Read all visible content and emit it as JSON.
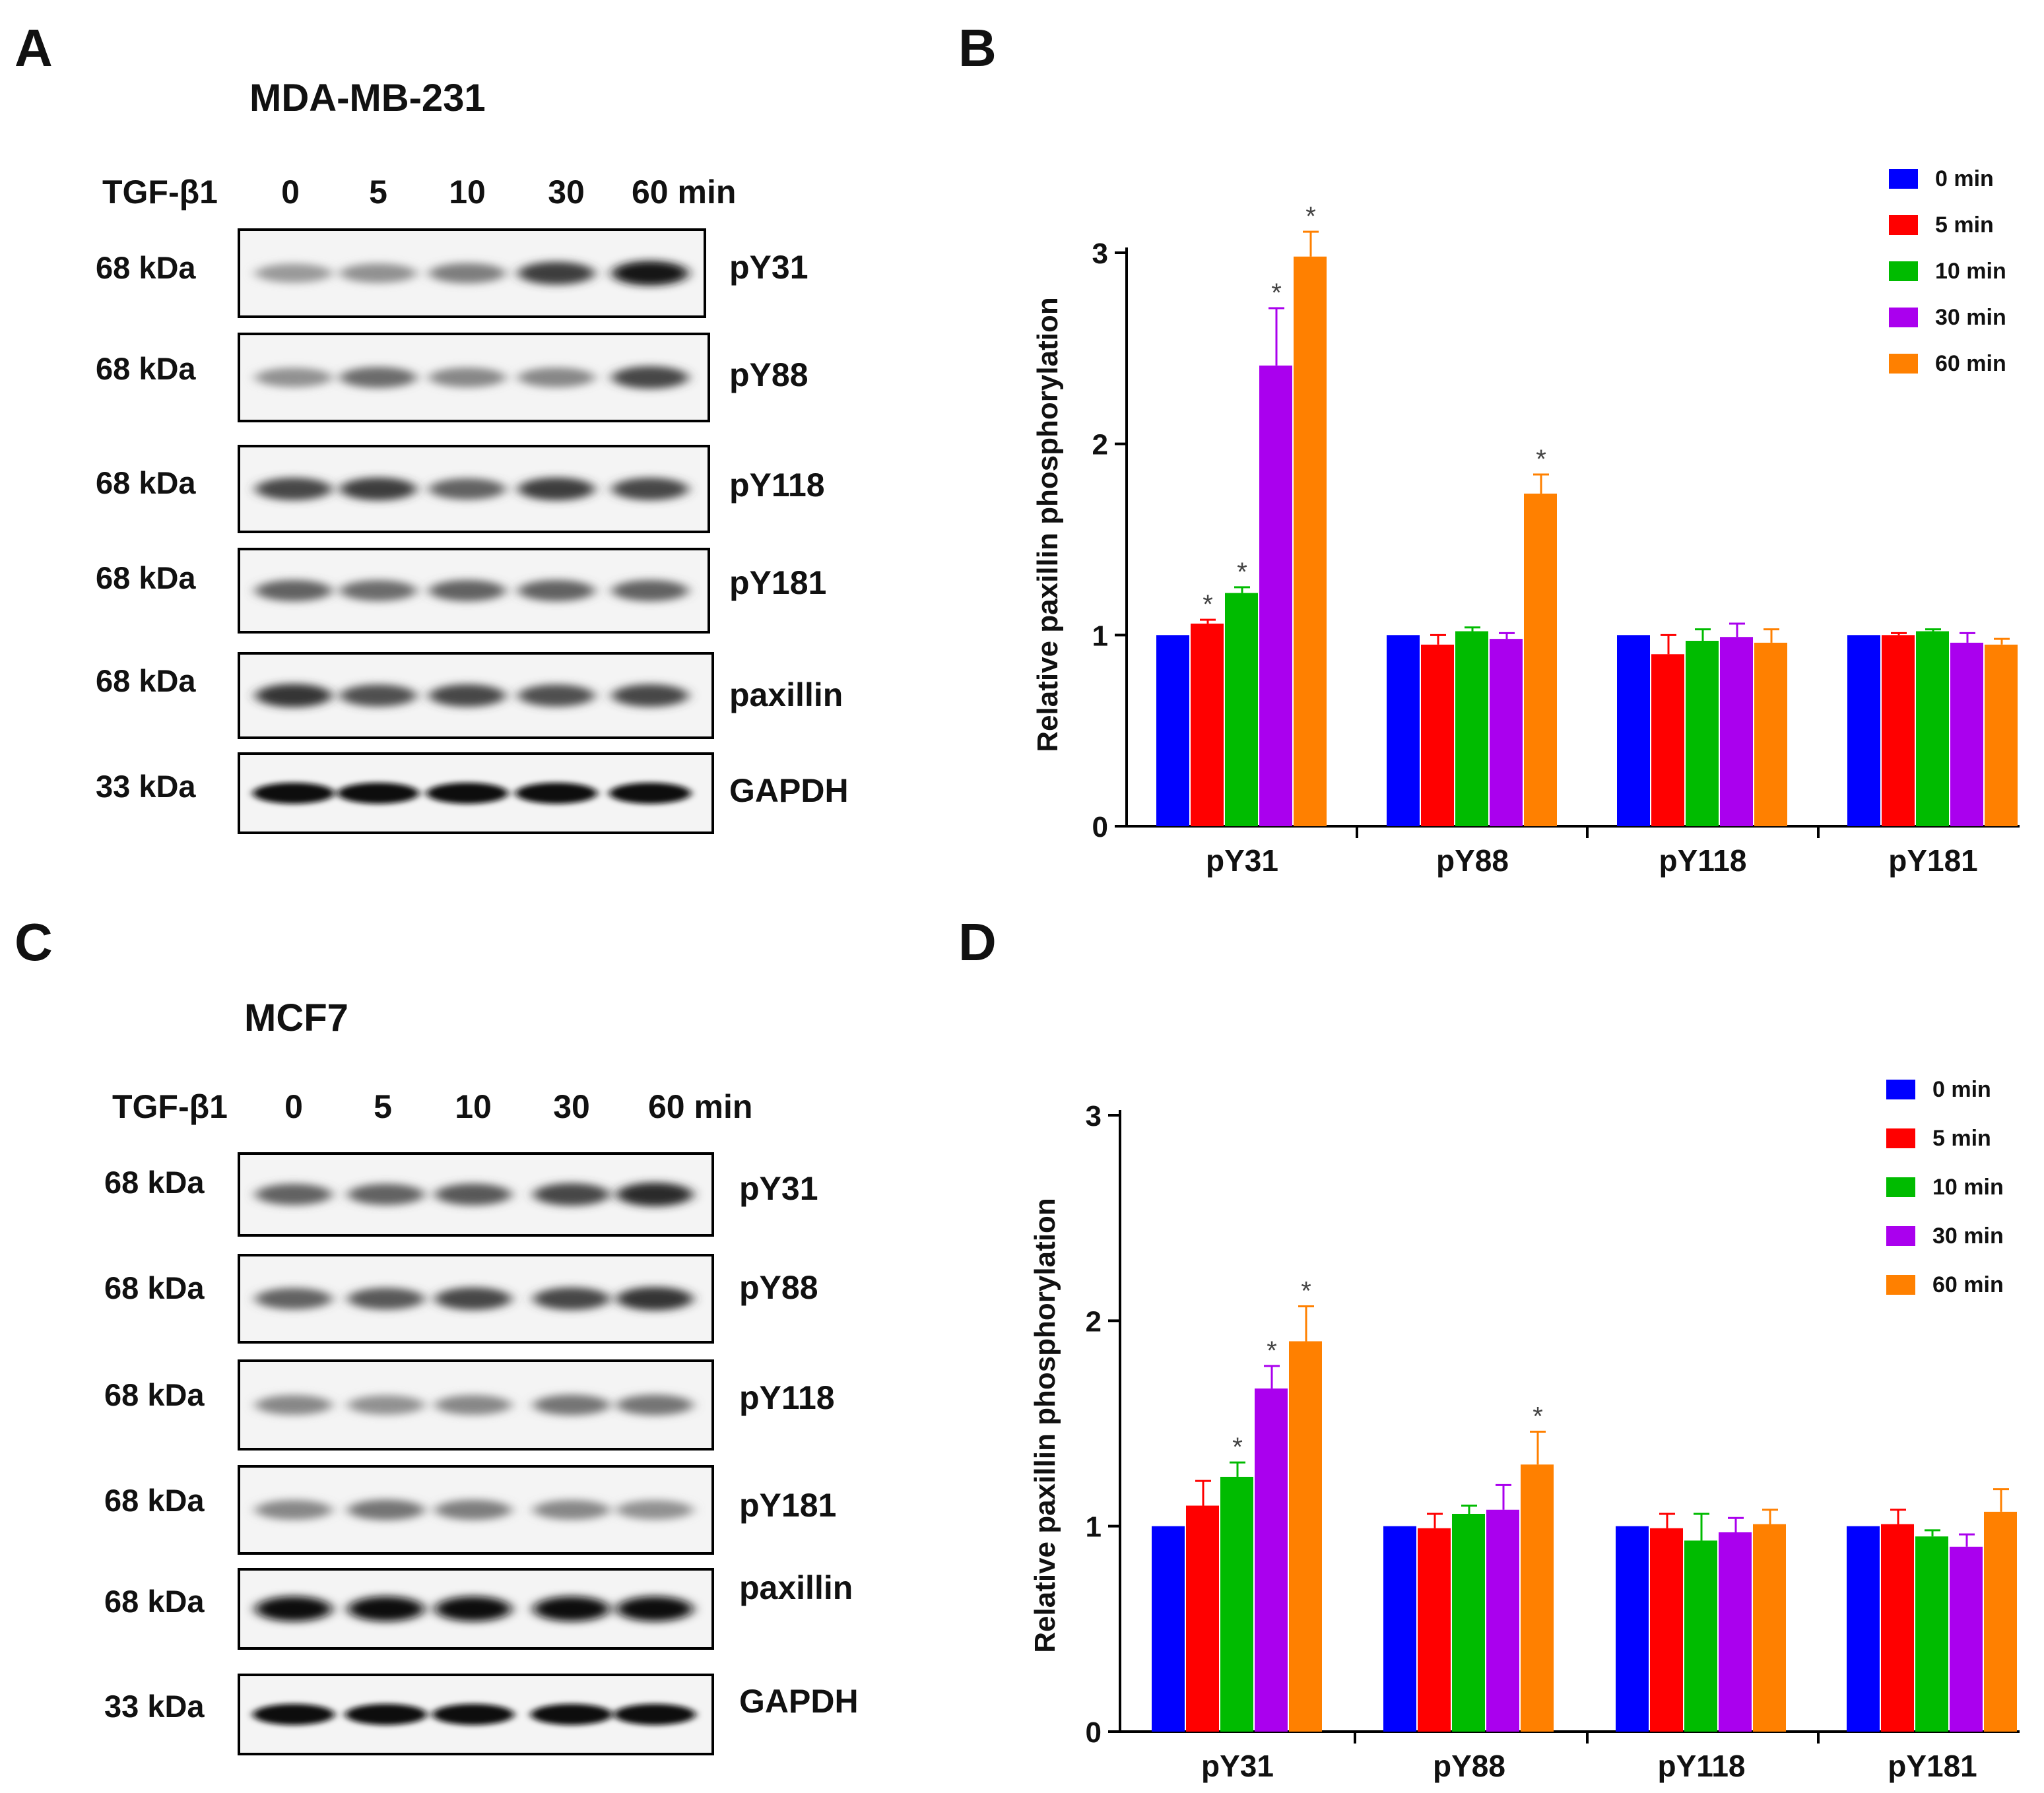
{
  "panel_labels": {
    "a": "A",
    "b": "B",
    "c": "C",
    "d": "D"
  },
  "blots": [
    {
      "title": "MDA-MB-231",
      "treatment": "TGF-β1",
      "lanes": [
        "0",
        "5",
        "10",
        "30",
        "60 min"
      ],
      "rows": [
        {
          "kda": "68 kDa",
          "label": "pY31",
          "intensity": [
            0.25,
            0.3,
            0.4,
            0.75,
            0.95
          ]
        },
        {
          "kda": "68 kDa",
          "label": "pY88",
          "intensity": [
            0.3,
            0.5,
            0.35,
            0.35,
            0.7
          ]
        },
        {
          "kda": "68 kDa",
          "label": "pY118",
          "intensity": [
            0.7,
            0.75,
            0.55,
            0.75,
            0.7
          ]
        },
        {
          "kda": "68 kDa",
          "label": "pY181",
          "intensity": [
            0.55,
            0.5,
            0.55,
            0.55,
            0.55
          ]
        },
        {
          "kda": "68 kDa",
          "label": "paxillin",
          "intensity": [
            0.8,
            0.65,
            0.7,
            0.65,
            0.7
          ]
        },
        {
          "kda": "33 kDa",
          "label": "GAPDH",
          "intensity": [
            1,
            1,
            1,
            1,
            1
          ]
        }
      ]
    },
    {
      "title": "MCF7",
      "treatment": "TGF-β1",
      "lanes": [
        "0",
        "5",
        "10",
        "30",
        "60 min"
      ],
      "rows": [
        {
          "kda": "68 kDa",
          "label": "pY31",
          "intensity": [
            0.55,
            0.55,
            0.6,
            0.7,
            0.85
          ]
        },
        {
          "kda": "68 kDa",
          "label": "pY88",
          "intensity": [
            0.55,
            0.6,
            0.7,
            0.7,
            0.8
          ]
        },
        {
          "kda": "68 kDa",
          "label": "pY118",
          "intensity": [
            0.35,
            0.3,
            0.35,
            0.45,
            0.45
          ]
        },
        {
          "kda": "68 kDa",
          "label": "pY181",
          "intensity": [
            0.35,
            0.45,
            0.4,
            0.35,
            0.3
          ]
        },
        {
          "kda": "68 kDa",
          "label": "paxillin",
          "intensity": [
            1,
            1,
            1,
            1,
            1
          ]
        },
        {
          "kda": "33 kDa",
          "label": "GAPDH",
          "intensity": [
            1,
            1,
            1,
            1,
            1
          ]
        }
      ]
    }
  ],
  "chart_data": [
    {
      "type": "bar",
      "panel": "B",
      "categories": [
        "pY31",
        "pY88",
        "pY118",
        "pY181"
      ],
      "ylabel": "Relative paxillin phosphorylation",
      "xlabel": "",
      "ylim": [
        0,
        3
      ],
      "yticks": [
        "0",
        "1",
        "2",
        "3"
      ],
      "legend_position": "top-right",
      "series": [
        {
          "name": "0 min",
          "color": "#0000ff",
          "values": [
            1.0,
            1.0,
            1.0,
            1.0
          ],
          "errors": [
            0,
            0,
            0,
            0
          ],
          "sig": [
            false,
            false,
            false,
            false
          ]
        },
        {
          "name": "5 min",
          "color": "#ff0000",
          "values": [
            1.06,
            0.95,
            0.9,
            1.0
          ],
          "errors": [
            0.02,
            0.05,
            0.1,
            0.01
          ],
          "sig": [
            true,
            false,
            false,
            false
          ]
        },
        {
          "name": "10 min",
          "color": "#00bb00",
          "values": [
            1.22,
            1.02,
            0.97,
            1.02
          ],
          "errors": [
            0.03,
            0.02,
            0.06,
            0.01
          ],
          "sig": [
            true,
            false,
            false,
            false
          ]
        },
        {
          "name": "30 min",
          "color": "#aa00ee",
          "values": [
            2.41,
            0.98,
            0.99,
            0.96
          ],
          "errors": [
            0.3,
            0.03,
            0.07,
            0.05
          ],
          "sig": [
            true,
            false,
            false,
            false
          ]
        },
        {
          "name": "60 min",
          "color": "#ff8000",
          "values": [
            2.98,
            1.74,
            0.96,
            0.95
          ],
          "errors": [
            0.13,
            0.1,
            0.07,
            0.03
          ],
          "sig": [
            true,
            true,
            false,
            false
          ]
        }
      ]
    },
    {
      "type": "bar",
      "panel": "D",
      "categories": [
        "pY31",
        "pY88",
        "pY118",
        "pY181"
      ],
      "ylabel": "Relative paxillin phosphorylation",
      "xlabel": "",
      "ylim": [
        0,
        3
      ],
      "yticks": [
        "0",
        "1",
        "2",
        "3"
      ],
      "legend_position": "top-right",
      "series": [
        {
          "name": "0 min",
          "color": "#0000ff",
          "values": [
            1.0,
            1.0,
            1.0,
            1.0
          ],
          "errors": [
            0,
            0,
            0,
            0
          ],
          "sig": [
            false,
            false,
            false,
            false
          ]
        },
        {
          "name": "5 min",
          "color": "#ff0000",
          "values": [
            1.1,
            0.99,
            0.99,
            1.01
          ],
          "errors": [
            0.12,
            0.07,
            0.07,
            0.07
          ],
          "sig": [
            false,
            false,
            false,
            false
          ]
        },
        {
          "name": "10 min",
          "color": "#00bb00",
          "values": [
            1.24,
            1.06,
            0.93,
            0.95
          ],
          "errors": [
            0.07,
            0.04,
            0.13,
            0.03
          ],
          "sig": [
            true,
            false,
            false,
            false
          ]
        },
        {
          "name": "30 min",
          "color": "#aa00ee",
          "values": [
            1.67,
            1.08,
            0.97,
            0.9
          ],
          "errors": [
            0.11,
            0.12,
            0.07,
            0.06
          ],
          "sig": [
            true,
            false,
            false,
            false
          ]
        },
        {
          "name": "60 min",
          "color": "#ff8000",
          "values": [
            1.9,
            1.3,
            1.01,
            1.07
          ],
          "errors": [
            0.17,
            0.16,
            0.07,
            0.11
          ],
          "sig": [
            true,
            true,
            false,
            false
          ]
        }
      ]
    }
  ]
}
